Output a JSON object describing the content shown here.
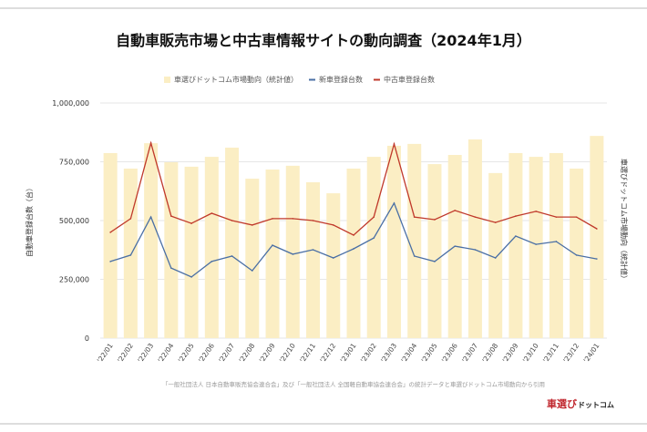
{
  "chart_data": {
    "type": "bar",
    "title": "自動車販売市場と中古車情報サイトの動向調査（2024年1月）",
    "ylabel_left": "自動車登録台数（台）",
    "ylabel_right": "車選びドットコム市場動向（統計値）",
    "ylim": [
      0,
      1000000
    ],
    "yticks": [
      "0",
      "250,000",
      "500,000",
      "750,000",
      "1,000,000"
    ],
    "ytick_values": [
      0,
      250000,
      500000,
      750000,
      1000000
    ],
    "grid": true,
    "legend_position": "top",
    "categories": [
      "'22/01",
      "'22/02",
      "'22/03",
      "'22/04",
      "'22/05",
      "'22/06",
      "'22/07",
      "'22/08",
      "'22/09",
      "'22/10",
      "'22/11",
      "'22/12",
      "'23/01",
      "'23/02",
      "'23/03",
      "'23/04",
      "'23/05",
      "'23/06",
      "'23/07",
      "'23/08",
      "'23/09",
      "'23/10",
      "'23/11",
      "'23/12",
      "'24/01"
    ],
    "series": [
      {
        "name": "車選びドットコム市場動向（統計値）",
        "type": "bar",
        "color": "#fbeec4",
        "values": [
          787000,
          721000,
          829000,
          748000,
          729000,
          771000,
          810000,
          678000,
          717000,
          733000,
          663000,
          616000,
          721000,
          771000,
          818000,
          826000,
          740000,
          779000,
          845000,
          702000,
          787000,
          771000,
          787000,
          721000,
          860000
        ]
      },
      {
        "name": "新車登録台数",
        "type": "line",
        "color": "#4a6fa5",
        "values": [
          326000,
          353000,
          515000,
          298000,
          260000,
          326000,
          349000,
          287000,
          395000,
          357000,
          376000,
          341000,
          380000,
          426000,
          574000,
          349000,
          326000,
          391000,
          376000,
          341000,
          434000,
          399000,
          411000,
          353000,
          337000
        ]
      },
      {
        "name": "中古車登録台数",
        "type": "line",
        "color": "#c0392b",
        "values": [
          450000,
          508000,
          830000,
          519000,
          488000,
          531000,
          500000,
          481000,
          508000,
          508000,
          500000,
          481000,
          438000,
          515000,
          826000,
          515000,
          504000,
          543000,
          515000,
          492000,
          519000,
          539000,
          515000,
          515000,
          465000
        ]
      }
    ],
    "source_note": "「一般社団法人 日本自動車販売協会連合会」及び「一般社団法人 全国軽自動車協会連合会」の統計データと車選びドットコム市場動向から引用"
  },
  "logo": {
    "text_red": "車選び",
    "text_black": "ドットコム",
    "color": "#c0262d"
  }
}
